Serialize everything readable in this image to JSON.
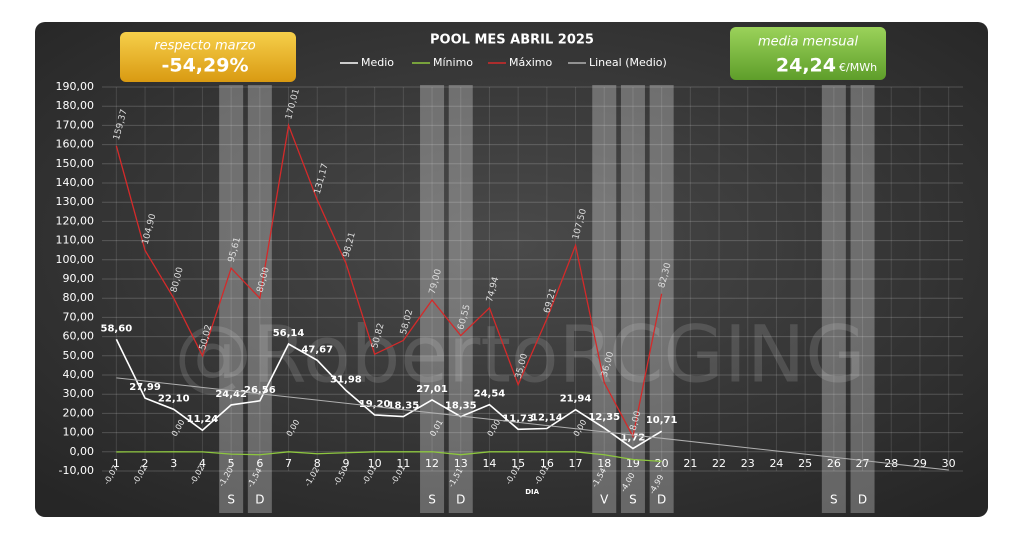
{
  "chart_data": {
    "type": "line",
    "title": "POOL  MES ABRIL 2025",
    "x_label": "DIA",
    "watermark": "@RobertoRCGING",
    "annotations": {
      "left_box": {
        "title": "respecto marzo",
        "value": "-54,29%"
      },
      "right_box": {
        "title": "media mensual",
        "value": "24,24",
        "unit": "€/MWh"
      }
    },
    "categories": [
      1,
      2,
      3,
      4,
      5,
      6,
      7,
      8,
      9,
      10,
      11,
      12,
      13,
      14,
      15,
      16,
      17,
      18,
      19,
      20,
      21,
      22,
      23,
      24,
      25,
      26,
      27,
      28,
      29,
      30
    ],
    "bands": [
      {
        "day": 5,
        "label": "S"
      },
      {
        "day": 6,
        "label": "D"
      },
      {
        "day": 12,
        "label": "S"
      },
      {
        "day": 13,
        "label": "D"
      },
      {
        "day": 18,
        "label": "V"
      },
      {
        "day": 19,
        "label": "S"
      },
      {
        "day": 20,
        "label": "D"
      },
      {
        "day": 26,
        "label": "S"
      },
      {
        "day": 27,
        "label": "D"
      }
    ],
    "series": [
      {
        "name": "Medio",
        "color": "#ffffff",
        "values": [
          58.6,
          27.99,
          22.1,
          11.24,
          24.42,
          26.56,
          56.14,
          47.67,
          31.98,
          19.2,
          18.35,
          27.01,
          18.35,
          24.54,
          11.73,
          12.14,
          21.94,
          12.35,
          1.72,
          10.71,
          null,
          null,
          null,
          null,
          null,
          null,
          null,
          null,
          null,
          null
        ],
        "value_labels": [
          "58,60",
          "27,99",
          "22,10",
          "11,24",
          "24,42",
          "26,56",
          "56,14",
          "47,67",
          "31,98",
          "19,20",
          "18,35",
          "27,01",
          "18,35",
          "24,54",
          "11,73",
          "12,14",
          "21,94",
          "12,35",
          "1,72",
          "10,71",
          null,
          null,
          null,
          null,
          null,
          null,
          null,
          null,
          null,
          null
        ]
      },
      {
        "name": "Mínimo",
        "color": "#8dc63f",
        "values": [
          -0.07,
          -0.02,
          0,
          -0.02,
          -1.2,
          -1.54,
          0,
          -1.02,
          -0.5,
          -0.01,
          -0.01,
          0.01,
          -1.51,
          0,
          -0.01,
          -0.01,
          0,
          -1.54,
          -4,
          -4.99,
          null,
          null,
          null,
          null,
          null,
          null,
          null,
          null,
          null,
          null
        ],
        "value_labels": [
          "-0,07",
          "-0,02",
          "0,00",
          "-0,02",
          "-1,20",
          "-1,54",
          "0,00",
          "-1,02",
          "-0,50",
          "-0,01",
          "-0,01",
          "0,01",
          "-1,51",
          "0,00",
          "-0,01",
          "-0,01",
          "0,00",
          "-1,54",
          "-4,00",
          "-4,99",
          null,
          null,
          null,
          null,
          null,
          null,
          null,
          null,
          null,
          null
        ]
      },
      {
        "name": "Máximo",
        "color": "#d42a2a",
        "values": [
          159.37,
          104.9,
          80,
          50.02,
          95.61,
          80,
          170.01,
          131.17,
          98.21,
          50.82,
          58.02,
          79,
          60.55,
          74.94,
          35,
          69.21,
          107.5,
          36,
          8,
          82.3,
          null,
          null,
          null,
          null,
          null,
          null,
          null,
          null,
          null,
          null
        ],
        "value_labels": [
          "159,37",
          "104,90",
          "80,00",
          "50,02",
          "95,61",
          "80,00",
          "170,01",
          "131,17",
          "98,21",
          "50,82",
          "58,02",
          "79,00",
          "60,55",
          "74,94",
          "35,00",
          "69,21",
          "107,50",
          "36,00",
          "8,00",
          "82,30",
          null,
          null,
          null,
          null,
          null,
          null,
          null,
          null,
          null,
          null
        ]
      },
      {
        "name": "Lineal (Medio)",
        "color": "#b0b0b0",
        "trend": true,
        "x": [
          1,
          30
        ],
        "values": [
          38.5,
          -9.5
        ]
      }
    ],
    "ylim": [
      -10,
      190
    ],
    "yticks": [
      {
        "value": 190,
        "label": "190,00"
      },
      {
        "value": 180,
        "label": "180,00"
      },
      {
        "value": 170,
        "label": "170,00"
      },
      {
        "value": 160,
        "label": "160,00"
      },
      {
        "value": 150,
        "label": "150,00"
      },
      {
        "value": 140,
        "label": "140,00"
      },
      {
        "value": 130,
        "label": "130,00"
      },
      {
        "value": 120,
        "label": "120,00"
      },
      {
        "value": 110,
        "label": "110,00"
      },
      {
        "value": 100,
        "label": "100,00"
      },
      {
        "value": 90,
        "label": "90,00"
      },
      {
        "value": 80,
        "label": "80,00"
      },
      {
        "value": 70,
        "label": "70,00"
      },
      {
        "value": 60,
        "label": "60,00"
      },
      {
        "value": 50,
        "label": "50,00"
      },
      {
        "value": 40,
        "label": "40,00"
      },
      {
        "value": 30,
        "label": "30,00"
      },
      {
        "value": 20,
        "label": "20,00"
      },
      {
        "value": 10,
        "label": "10,00"
      },
      {
        "value": 0,
        "label": "0,00"
      },
      {
        "value": -10,
        "label": "-10,00"
      }
    ],
    "grid": true
  }
}
